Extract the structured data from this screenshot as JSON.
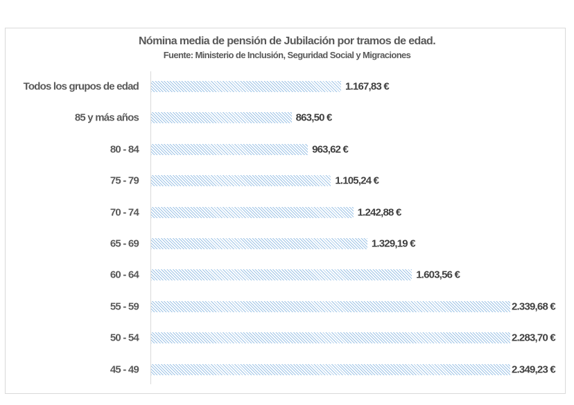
{
  "chart_data": {
    "type": "bar",
    "orientation": "horizontal",
    "title": "Nómina media de pensión de Jubilación por tramos de edad.",
    "subtitle": "Fuente: Ministerio de Inclusión, Seguridad Social y Migraciones",
    "categories": [
      "Todos los grupos de edad",
      "85 y más años",
      "80 - 84",
      "75 - 79",
      "70 - 74",
      "65 - 69",
      "60 - 64",
      "55 - 59",
      "50 - 54",
      "45 - 49"
    ],
    "values": [
      1167.83,
      863.5,
      963.62,
      1105.24,
      1242.88,
      1329.19,
      1603.56,
      2339.68,
      2283.7,
      2349.23
    ],
    "data_labels": [
      "1.167,83 €",
      "863,50 €",
      "963,62 €",
      "1.105,24 €",
      "1.242,88 €",
      "1.329,19 €",
      "1.603,56 €",
      "2.339,68 €",
      "2.283,70 €",
      "2.349,23 €"
    ],
    "bar_color": "#9dc3e6",
    "bar_fill": "diagonal-hatch",
    "grid": false,
    "legend": "none"
  }
}
